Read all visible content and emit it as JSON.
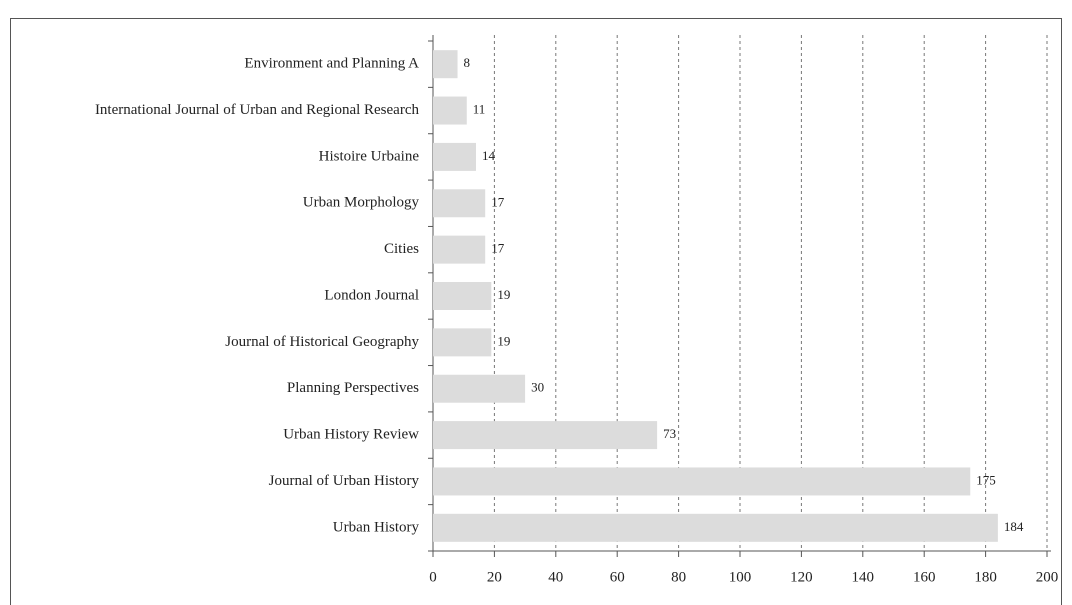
{
  "chart_data": {
    "type": "barh",
    "categories": [
      "Environment and Planning A",
      "International Journal of Urban and Regional Research",
      "Histoire Urbaine",
      "Urban Morphology",
      "Cities",
      "London Journal",
      "Journal of Historical Geography",
      "Planning Perspectives",
      "Urban History Review",
      "Journal of Urban History",
      "Urban History"
    ],
    "values": [
      8,
      11,
      14,
      17,
      17,
      19,
      19,
      30,
      73,
      175,
      184
    ],
    "color": "#dcdcdc",
    "xlim": [
      0,
      200
    ],
    "xticks": [
      0,
      20,
      40,
      60,
      80,
      100,
      120,
      140,
      160,
      180,
      200
    ],
    "grid": true
  }
}
